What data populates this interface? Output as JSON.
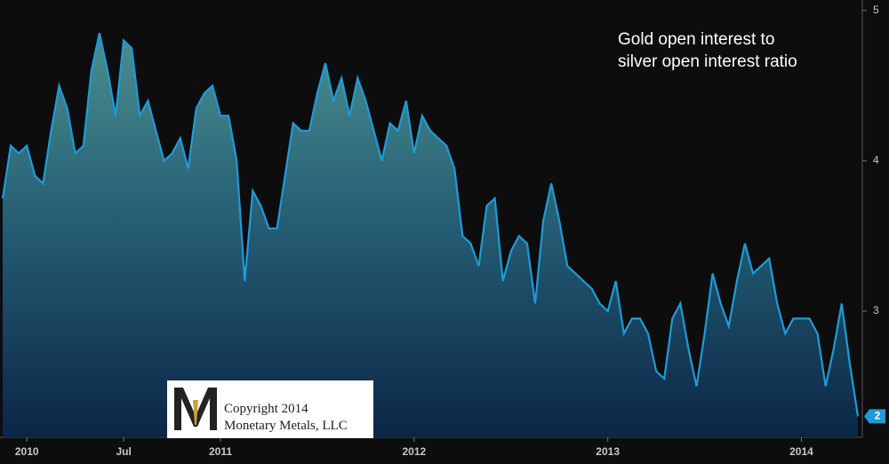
{
  "chart_data": {
    "type": "area",
    "annotation": "Gold open interest to silver open interest ratio",
    "watermark": [
      "Copyright 2014",
      "Monetary Metals, LLC"
    ],
    "categories": [
      null,
      null,
      null,
      "2010",
      null,
      null,
      null,
      null,
      null,
      null,
      null,
      null,
      null,
      null,
      null,
      "Jul",
      null,
      null,
      null,
      null,
      null,
      null,
      null,
      null,
      null,
      null,
      null,
      "2011",
      null,
      null,
      null,
      null,
      null,
      null,
      null,
      null,
      null,
      null,
      null,
      null,
      null,
      null,
      null,
      null,
      null,
      null,
      null,
      null,
      null,
      null,
      null,
      "2012",
      null,
      null,
      null,
      null,
      null,
      null,
      null,
      null,
      null,
      null,
      null,
      null,
      null,
      null,
      null,
      null,
      null,
      null,
      null,
      null,
      null,
      null,
      null,
      "2013",
      null,
      null,
      null,
      null,
      null,
      null,
      null,
      null,
      null,
      null,
      null,
      null,
      null,
      null,
      null,
      null,
      null,
      null,
      null,
      null,
      null,
      null,
      null,
      "2014",
      null,
      null,
      null,
      null,
      null,
      null,
      null
    ],
    "values": [
      3.75,
      4.1,
      4.05,
      4.1,
      3.9,
      3.85,
      4.2,
      4.5,
      4.35,
      4.05,
      4.1,
      4.6,
      4.85,
      4.6,
      4.3,
      4.8,
      4.75,
      4.3,
      4.4,
      4.2,
      4.0,
      4.05,
      4.15,
      3.95,
      4.35,
      4.45,
      4.5,
      4.3,
      4.3,
      4.0,
      3.2,
      3.8,
      3.7,
      3.55,
      3.55,
      3.9,
      4.25,
      4.2,
      4.2,
      4.45,
      4.65,
      4.4,
      4.55,
      4.3,
      4.55,
      4.4,
      4.2,
      4.0,
      4.25,
      4.2,
      4.4,
      4.05,
      4.3,
      4.2,
      4.15,
      4.1,
      3.95,
      3.5,
      3.45,
      3.3,
      3.7,
      3.75,
      3.2,
      3.4,
      3.5,
      3.45,
      3.05,
      3.6,
      3.85,
      3.6,
      3.3,
      3.25,
      3.2,
      3.15,
      3.05,
      3.0,
      3.2,
      2.85,
      2.95,
      2.95,
      2.85,
      2.6,
      2.55,
      2.95,
      3.05,
      2.75,
      2.5,
      2.85,
      3.25,
      3.05,
      2.9,
      3.2,
      3.45,
      3.25,
      3.3,
      3.35,
      3.05,
      2.85,
      2.95,
      2.95,
      2.95,
      2.85,
      2.5,
      2.75,
      3.05,
      2.65,
      2.3
    ],
    "end_label": "2",
    "color": "#1e9bd7",
    "ylim": [
      2.16,
      5.07
    ],
    "yticks": [
      3,
      4,
      5
    ]
  }
}
